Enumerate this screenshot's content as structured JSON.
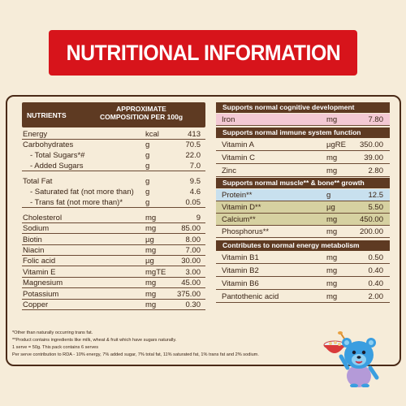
{
  "title": "NUTRITIONAL INFORMATION",
  "left_table": {
    "header_nutrients": "NUTRIENTS",
    "header_comp_line1": "APPROXIMATE",
    "header_comp_line2": "COMPOSITION PER 100g",
    "rows": [
      {
        "name": "Energy",
        "unit": "kcal",
        "value": "413"
      },
      {
        "name": "Carbohydrates",
        "unit": "g",
        "value": "70.5"
      },
      {
        "name": "- Total Sugars*#",
        "unit": "g",
        "value": "22.0"
      },
      {
        "name": "- Added Sugars",
        "unit": "g",
        "value": "7.0"
      },
      {
        "name": "Total Fat",
        "unit": "g",
        "value": "9.5"
      },
      {
        "name": "- Saturated fat (not more than)",
        "unit": "g",
        "value": "4.6"
      },
      {
        "name": "- Trans fat (not more than)*",
        "unit": "g",
        "value": "0.05"
      },
      {
        "name": "Cholesterol",
        "unit": "mg",
        "value": "9"
      },
      {
        "name": "Sodium",
        "unit": "mg",
        "value": "85.00"
      },
      {
        "name": "Biotin",
        "unit": "µg",
        "value": "8.00"
      },
      {
        "name": "Niacin",
        "unit": "mg",
        "value": "7.00"
      },
      {
        "name": "Folic acid",
        "unit": "µg",
        "value": "30.00"
      },
      {
        "name": "Vitamin E",
        "unit": "mgTE",
        "value": "3.00"
      },
      {
        "name": "Magnesium",
        "unit": "mg",
        "value": "45.00"
      },
      {
        "name": "Potassium",
        "unit": "mg",
        "value": "375.00"
      },
      {
        "name": "Copper",
        "unit": "mg",
        "value": "0.30"
      }
    ]
  },
  "right_sections": [
    {
      "header": "Supports normal cognitive development",
      "rows": [
        {
          "name": "Iron",
          "unit": "mg",
          "value": "7.80",
          "highlight": "pink"
        }
      ]
    },
    {
      "header": "Supports normal immune system function",
      "rows": [
        {
          "name": "Vitamin A",
          "unit": "µgRE",
          "value": "350.00",
          "highlight": ""
        },
        {
          "name": "Vitamin C",
          "unit": "mg",
          "value": "39.00",
          "highlight": ""
        },
        {
          "name": "Zinc",
          "unit": "mg",
          "value": "2.80",
          "highlight": ""
        }
      ]
    },
    {
      "header": "Supports normal muscle** & bone** growth",
      "rows": [
        {
          "name": "Protein**",
          "unit": "g",
          "value": "12.5",
          "highlight": "blue"
        },
        {
          "name": "Vitamin D**",
          "unit": "µg",
          "value": "5.50",
          "highlight": "olive"
        },
        {
          "name": "Calcium**",
          "unit": "mg",
          "value": "450.00",
          "highlight": "olive"
        },
        {
          "name": "Phosphorus**",
          "unit": "mg",
          "value": "200.00",
          "highlight": ""
        }
      ]
    },
    {
      "header": "Contributes to normal energy metabolism",
      "rows": [
        {
          "name": "Vitamin B1",
          "unit": "mg",
          "value": "0.50",
          "highlight": ""
        },
        {
          "name": "Vitamin B2",
          "unit": "mg",
          "value": "0.40",
          "highlight": ""
        },
        {
          "name": "Vitamin B6",
          "unit": "mg",
          "value": "0.40",
          "highlight": ""
        },
        {
          "name": "Pantothenic acid",
          "unit": "mg",
          "value": "2.00",
          "highlight": ""
        }
      ]
    }
  ],
  "footnotes": [
    "*Other than naturally occurring trans fat.",
    "**Product contains ingredients like milk, wheat & fruit which have sugars naturally.",
    "1 serve = 50g. This pack contains 6 serves",
    "Per serve contribution to RDA - 10% energy, 7% added sugar, 7% total fat, 11% saturated fat, 1% trans fat and 2% sodium."
  ],
  "colors": {
    "background": "#f6ecd9",
    "banner": "#d7141b",
    "header_brown": "#5e3a22",
    "highlight_pink": "#f3c9d4",
    "highlight_blue": "#c8e0ee",
    "highlight_olive": "#d6d1a1"
  },
  "mascot_icon": "blue-teddy-bear-with-cereal-bowl"
}
